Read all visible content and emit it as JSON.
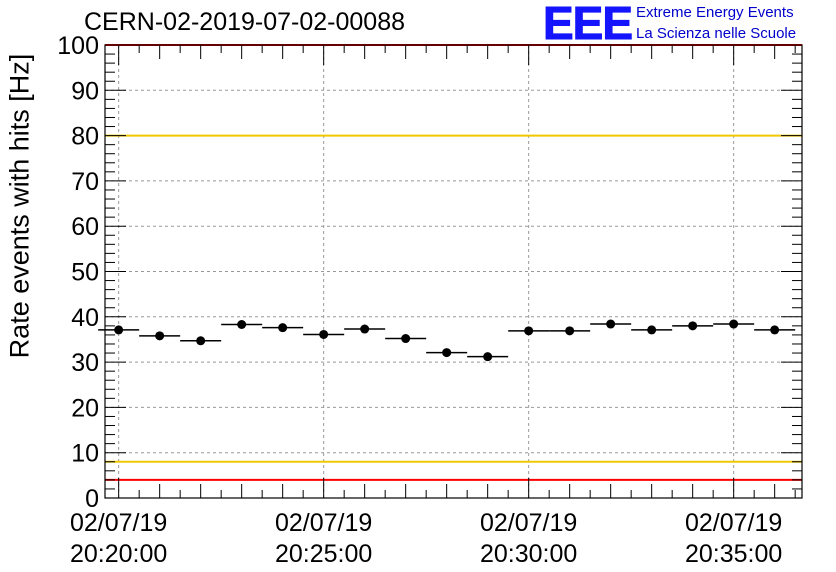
{
  "title": "CERN-02-2019-07-02-00088",
  "logo": {
    "mark": "EEE",
    "line1": "Extreme Energy Events",
    "line2": "La Scienza nelle Scuole",
    "color": "#1414ff"
  },
  "chart_data": {
    "type": "scatter",
    "ylabel": "Rate events with hits [Hz]",
    "ylim": [
      0,
      100
    ],
    "yticks": [
      "0",
      "10",
      "20",
      "30",
      "40",
      "50",
      "60",
      "70",
      "80",
      "90",
      "100"
    ],
    "xlim": [
      "2019-07-02 20:19:40",
      "2019-07-02 20:36:40"
    ],
    "xticks": [
      {
        "date": "02/07/19",
        "time": "20:20:00"
      },
      {
        "date": "02/07/19",
        "time": "20:25:00"
      },
      {
        "date": "02/07/19",
        "time": "20:30:00"
      },
      {
        "date": "02/07/19",
        "time": "20:35:00"
      }
    ],
    "grid": true,
    "reference_lines": [
      {
        "y": 100,
        "color": "#ff0000"
      },
      {
        "y": 80,
        "color": "#f0c800"
      },
      {
        "y": 8,
        "color": "#f0c800"
      },
      {
        "y": 4,
        "color": "#ff0000"
      }
    ],
    "series": [
      {
        "bin_width_seconds": 60,
        "x": [
          "20:20:00",
          "20:21:00",
          "20:22:00",
          "20:23:00",
          "20:24:00",
          "20:25:00",
          "20:26:00",
          "20:27:00",
          "20:28:00",
          "20:29:00",
          "20:30:00",
          "20:31:00",
          "20:32:00",
          "20:33:00",
          "20:34:00",
          "20:35:00",
          "20:36:00"
        ],
        "y": [
          37.1,
          35.8,
          34.7,
          38.3,
          37.6,
          36.1,
          37.3,
          35.2,
          32.1,
          31.2,
          36.9,
          36.9,
          38.4,
          37.1,
          38.0,
          38.4,
          37.1
        ]
      }
    ]
  }
}
